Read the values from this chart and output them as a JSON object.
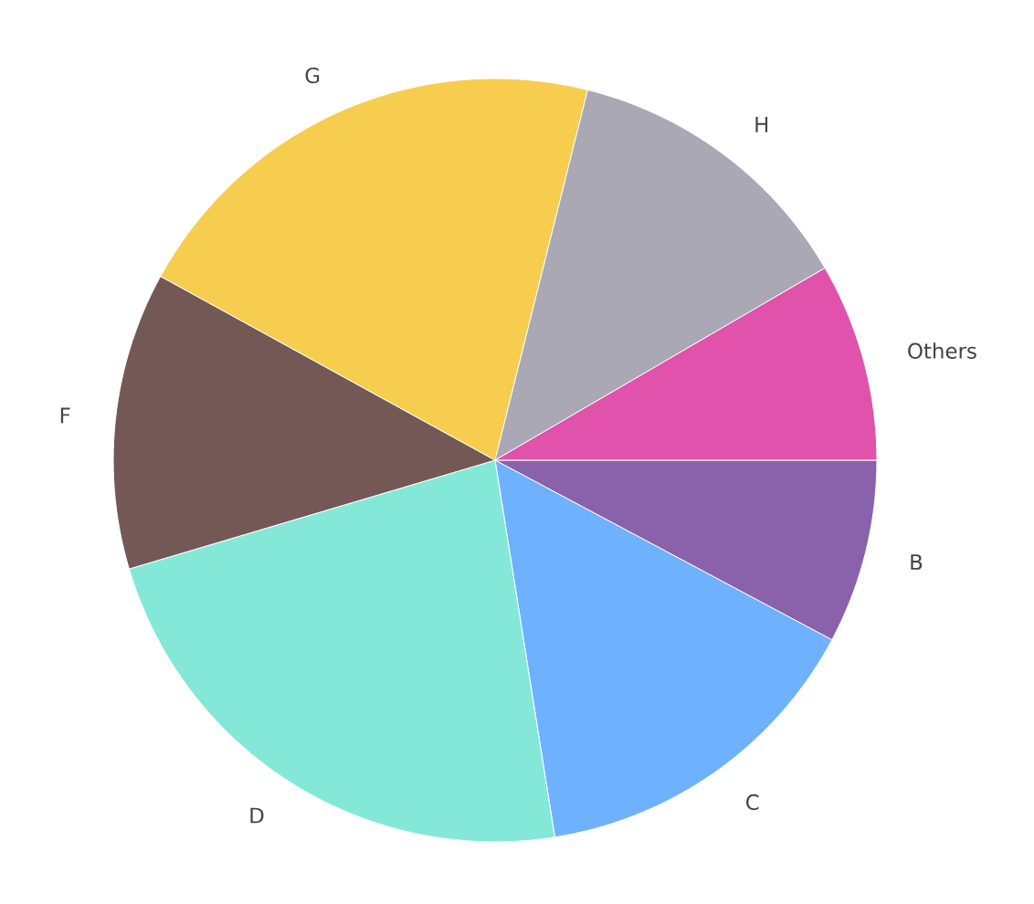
{
  "chart_data": {
    "type": "pie",
    "categories": [
      "B",
      "C",
      "D",
      "F",
      "G",
      "H",
      "Others"
    ],
    "values": [
      7.8,
      14.7,
      22.9,
      12.6,
      20.9,
      12.7,
      8.4
    ],
    "colors": [
      "#8a62ab",
      "#6eb1ff",
      "#83e8d7",
      "#735856",
      "#f7cd50",
      "#a9a8b4",
      "#e052ab"
    ]
  }
}
